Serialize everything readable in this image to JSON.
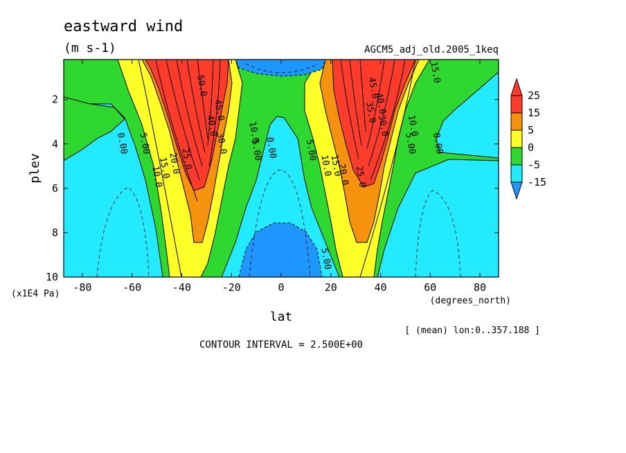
{
  "chart_data": {
    "type": "contour",
    "title": "eastward wind",
    "units": "(m s-1)",
    "dataset": "AGCM5_adj_old.2005_1keq",
    "xlabel": "lat",
    "xunits": "(degrees_north)",
    "ylabel": "plev",
    "yunits": "(x1E4 Pa)",
    "xlim": [
      -87.5,
      87.5
    ],
    "ylim": [
      10,
      0.2
    ],
    "x_ticks": [
      "-80",
      "-60",
      "-40",
      "-20",
      "0",
      "20",
      "40",
      "60",
      "80"
    ],
    "x_tick_values": [
      -80,
      -60,
      -40,
      -20,
      0,
      20,
      40,
      60,
      80
    ],
    "y_ticks": [
      "2",
      "4",
      "6",
      "8",
      "10"
    ],
    "y_tick_values": [
      2,
      4,
      6,
      8,
      10
    ],
    "contour_interval": "CONTOUR INTERVAL = 2.500E+00",
    "subset_note": "[ (mean) lon:0..357.188 ]",
    "colorbar": {
      "labels": [
        "25",
        "15",
        "5",
        "0",
        "-5",
        "-15"
      ],
      "levels": [
        25,
        15,
        5,
        0,
        -5,
        -15
      ],
      "colors": [
        "#ff3b2c",
        "#f7920f",
        "#ffff28",
        "#2ed82e",
        "#22eaff",
        "#1e96ff"
      ]
    },
    "contour_labels": [
      {
        "text": "0.00",
        "lat": -65,
        "p": 4.0
      },
      {
        "text": "5.00",
        "lat": -56,
        "p": 4.0
      },
      {
        "text": "10.0",
        "lat": -51,
        "p": 5.5
      },
      {
        "text": "15.0",
        "lat": -48,
        "p": 5.1
      },
      {
        "text": "20.0",
        "lat": -44,
        "p": 4.9
      },
      {
        "text": "25.0",
        "lat": -39,
        "p": 4.7
      },
      {
        "text": "30.0",
        "lat": -25,
        "p": 4.0
      },
      {
        "text": "40.0",
        "lat": -29,
        "p": 3.2
      },
      {
        "text": "45.0",
        "lat": -26,
        "p": 2.5
      },
      {
        "text": "50.0",
        "lat": -33,
        "p": 1.4
      },
      {
        "text": "10.0",
        "lat": -12,
        "p": 3.5
      },
      {
        "text": "5.00",
        "lat": -11,
        "p": 4.3
      },
      {
        "text": "0.00",
        "lat": -5,
        "p": 4.2
      },
      {
        "text": "5.00",
        "lat": 11,
        "p": 4.3
      },
      {
        "text": "10.0",
        "lat": 17,
        "p": 5.0
      },
      {
        "text": "15.0",
        "lat": 21,
        "p": 5.0
      },
      {
        "text": "20.0",
        "lat": 24,
        "p": 5.4
      },
      {
        "text": "25.0",
        "lat": 31,
        "p": 5.5
      },
      {
        "text": "30.0",
        "lat": 40,
        "p": 3.2
      },
      {
        "text": "35.0",
        "lat": 35,
        "p": 2.6
      },
      {
        "text": "40.0",
        "lat": 39,
        "p": 2.2
      },
      {
        "text": "45.0",
        "lat": 36,
        "p": 1.5
      },
      {
        "text": "10.0",
        "lat": 52,
        "p": 3.2
      },
      {
        "text": "5.00",
        "lat": 51,
        "p": 4.0
      },
      {
        "text": "0.00",
        "lat": 62,
        "p": 4.0
      },
      {
        "text": "5.00",
        "lat": 17,
        "p": 9.2
      },
      {
        "text": "15.0",
        "lat": 61,
        "p": 0.8
      }
    ]
  }
}
